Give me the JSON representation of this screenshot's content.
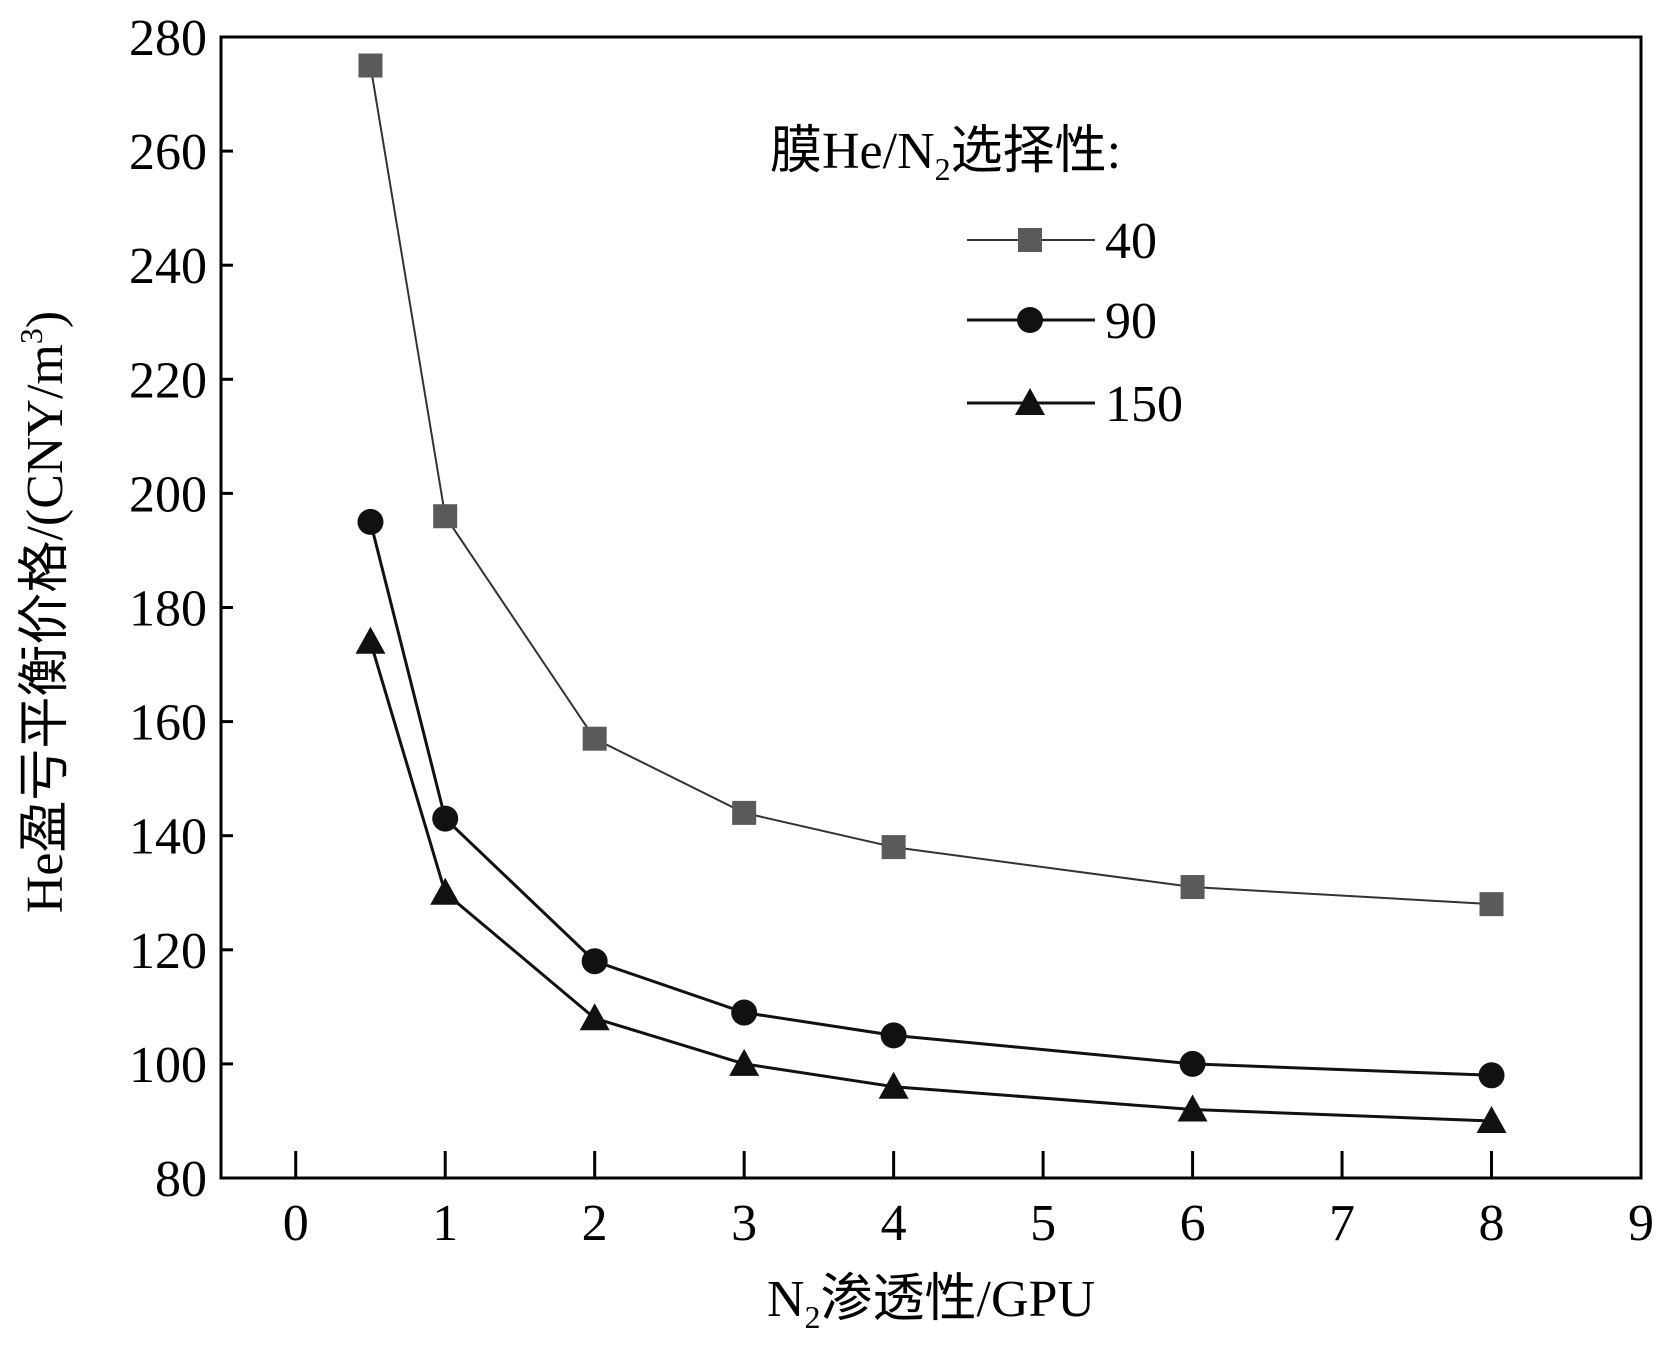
{
  "chart_data": {
    "type": "line",
    "title": "",
    "xlabel": {
      "main": "N",
      "sub": "2",
      "rest": "渗透性/GPU"
    },
    "ylabel": {
      "pre": "He盈亏平衡价格/(CNY/m",
      "sup": "3",
      "post": ")"
    },
    "xlim": [
      -0.5,
      9
    ],
    "ylim": [
      80,
      280
    ],
    "xticks": [
      0,
      1,
      2,
      3,
      4,
      5,
      6,
      7,
      8,
      9
    ],
    "yticks": [
      80,
      100,
      120,
      140,
      160,
      180,
      200,
      220,
      240,
      260,
      280
    ],
    "grid": false,
    "legend": {
      "position": "top-right",
      "title": {
        "pre": "膜He/N",
        "sub": "2",
        "post": "选择性:"
      }
    },
    "x": [
      0.5,
      1,
      2,
      3,
      4,
      6,
      8
    ],
    "series": [
      {
        "name": "40",
        "marker": "square",
        "color": "#5a5a5a",
        "values": [
          275,
          196,
          157,
          144,
          138,
          131,
          128
        ]
      },
      {
        "name": "90",
        "marker": "circle",
        "color": "#111111",
        "values": [
          195,
          143,
          118,
          109,
          105,
          100,
          98
        ]
      },
      {
        "name": "150",
        "marker": "triangle",
        "color": "#111111",
        "values": [
          174,
          130,
          108,
          100,
          96,
          92,
          90
        ]
      }
    ]
  }
}
